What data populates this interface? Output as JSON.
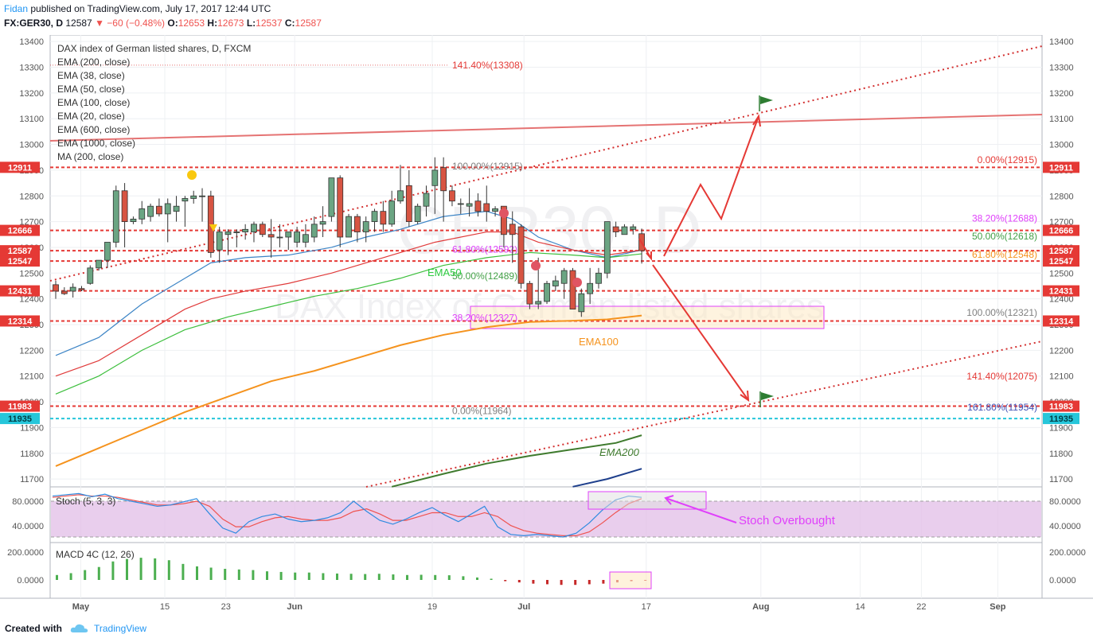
{
  "header": {
    "author": "Fidan",
    "published": "published on TradingView.com, July 17, 2017 12:44 UTC",
    "symbol": "FX:GER30, D",
    "last": "12587",
    "change": "▼ −60 (−0.48%)",
    "o_label": "O:",
    "o": "12653",
    "h_label": "H:",
    "h": "12673",
    "l_label": "L:",
    "l": "12537",
    "c_label": "C:",
    "c": "12587"
  },
  "footer": {
    "created": "Created with",
    "brand": "TradingView"
  },
  "colors": {
    "up": "#6ba583",
    "down": "#d75442",
    "ema20": "#3d85c6",
    "ema38": "#e03b3b",
    "ema50": "#3dbf3d",
    "ema100": "#f5931e",
    "ema200": "#3f7b2e",
    "ema600": "#1e3f8c",
    "ema1000": "#c62828",
    "fib": "#e53935",
    "stoch_k": "#2f8be0",
    "stoch_d": "#ef5350",
    "stoch_band": "#e1bee7",
    "macd_pos": "#4caf50",
    "macd_neg": "#c62828"
  },
  "watermark": {
    "symbol": "GER30, D",
    "name": "DAX Index of German listed shares"
  },
  "legend": {
    "title": "DAX index of German listed shares, D, FXCM",
    "items": [
      "EMA (200, close)",
      "EMA (38, close)",
      "EMA (50, close)",
      "EMA (100, close)",
      "EMA (20, close)",
      "EMA (600, close)",
      "EMA (1000, close)",
      "MA (200, close)"
    ]
  },
  "chart_data": {
    "type": "candlestick",
    "ylim": [
      11660,
      13430
    ],
    "y_ticks": [
      11700,
      11800,
      11900,
      12000,
      12100,
      12200,
      12300,
      12400,
      12500,
      12600,
      12700,
      12800,
      12900,
      13000,
      13100,
      13200,
      13300,
      13400
    ],
    "x_ticks": [
      {
        "label": "May",
        "day": 4
      },
      {
        "label": "15",
        "day": 15
      },
      {
        "label": "23",
        "day": 23
      },
      {
        "label": "Jun",
        "day": 32
      },
      {
        "label": "19",
        "day": 50
      },
      {
        "label": "Jul",
        "day": 62
      },
      {
        "label": "17",
        "day": 78
      },
      {
        "label": "Aug",
        "day": 93
      },
      {
        "label": "14",
        "day": 106
      },
      {
        "label": "22",
        "day": 114
      },
      {
        "label": "Sep",
        "day": 124
      }
    ],
    "candles": [
      [
        0,
        12455,
        12470,
        12400,
        12430
      ],
      [
        1,
        12430,
        12445,
        12415,
        12420
      ],
      [
        2,
        12430,
        12460,
        12405,
        12445
      ],
      [
        3,
        12440,
        12450,
        12430,
        12435
      ],
      [
        4,
        12460,
        12530,
        12455,
        12520
      ],
      [
        5,
        12520,
        12550,
        12510,
        12550
      ],
      [
        6,
        12550,
        12620,
        12520,
        12620
      ],
      [
        7,
        12620,
        12840,
        12600,
        12820
      ],
      [
        8,
        12820,
        12850,
        12600,
        12700
      ],
      [
        9,
        12700,
        12720,
        12690,
        12710
      ],
      [
        10,
        12710,
        12780,
        12690,
        12750
      ],
      [
        11,
        12720,
        12770,
        12700,
        12760
      ],
      [
        12,
        12760,
        12790,
        12720,
        12730
      ],
      [
        13,
        12730,
        12790,
        12620,
        12770
      ],
      [
        14,
        12740,
        12800,
        12700,
        12760
      ],
      [
        15,
        12780,
        12800,
        12680,
        12790
      ],
      [
        16,
        12790,
        12820,
        12770,
        12800
      ],
      [
        17,
        12800,
        12830,
        12700,
        12800
      ],
      [
        18,
        12800,
        12820,
        12560,
        12580
      ],
      [
        19,
        12590,
        12680,
        12540,
        12660
      ],
      [
        20,
        12650,
        12670,
        12570,
        12660
      ],
      [
        21,
        12660,
        12670,
        12600,
        12660
      ],
      [
        22,
        12660,
        12690,
        12630,
        12670
      ],
      [
        23,
        12660,
        12700,
        12620,
        12690
      ],
      [
        24,
        12690,
        12700,
        12640,
        12650
      ],
      [
        25,
        12650,
        12710,
        12560,
        12640
      ],
      [
        26,
        12640,
        12690,
        12600,
        12640
      ],
      [
        27,
        12640,
        12650,
        12590,
        12660
      ],
      [
        28,
        12620,
        12680,
        12600,
        12660
      ],
      [
        29,
        12620,
        12690,
        12600,
        12650
      ],
      [
        30,
        12640,
        12720,
        12620,
        12690
      ],
      [
        31,
        12690,
        12760,
        12640,
        12700
      ],
      [
        32,
        12720,
        12870,
        12700,
        12870
      ],
      [
        33,
        12870,
        12880,
        12600,
        12640
      ],
      [
        34,
        12640,
        12730,
        12640,
        12720
      ],
      [
        35,
        12720,
        12730,
        12620,
        12660
      ],
      [
        36,
        12660,
        12720,
        12620,
        12700
      ],
      [
        37,
        12700,
        12750,
        12660,
        12740
      ],
      [
        38,
        12740,
        12780,
        12660,
        12690
      ],
      [
        39,
        12690,
        12820,
        12680,
        12780
      ],
      [
        40,
        12780,
        12920,
        12770,
        12820
      ],
      [
        41,
        12840,
        12900,
        12680,
        12700
      ],
      [
        42,
        12700,
        12770,
        12690,
        12760
      ],
      [
        43,
        12760,
        12840,
        12720,
        12810
      ],
      [
        44,
        12840,
        12950,
        12730,
        12900
      ],
      [
        45,
        12910,
        12950,
        12700,
        12820
      ],
      [
        46,
        12820,
        12840,
        12760,
        12780
      ],
      [
        47,
        12770,
        12790,
        12730,
        12770
      ],
      [
        48,
        12760,
        12830,
        12720,
        12770
      ],
      [
        49,
        12780,
        12810,
        12720,
        12740
      ],
      [
        50,
        12770,
        12840,
        12700,
        12740
      ],
      [
        51,
        12740,
        12760,
        12720,
        12750
      ],
      [
        52,
        12760,
        12760,
        12600,
        12650
      ],
      [
        53,
        12690,
        12740,
        12540,
        12650
      ],
      [
        54,
        12680,
        12690,
        12440,
        12460
      ],
      [
        55,
        12460,
        12470,
        12360,
        12380
      ],
      [
        56,
        12380,
        12560,
        12360,
        12390
      ],
      [
        57,
        12390,
        12470,
        12380,
        12460
      ],
      [
        58,
        12450,
        12490,
        12430,
        12470
      ],
      [
        59,
        12460,
        12520,
        12400,
        12510
      ],
      [
        60,
        12510,
        12520,
        12360,
        12360
      ],
      [
        61,
        12350,
        12440,
        12330,
        12420
      ],
      [
        62,
        12420,
        12520,
        12380,
        12460
      ],
      [
        63,
        12460,
        12520,
        12440,
        12500
      ],
      [
        64,
        12500,
        12700,
        12480,
        12700
      ],
      [
        65,
        12680,
        12700,
        12640,
        12660
      ],
      [
        66,
        12650,
        12690,
        12660,
        12680
      ],
      [
        67,
        12670,
        12690,
        12650,
        12680
      ],
      [
        68,
        12653,
        12673,
        12537,
        12587
      ]
    ],
    "horizontal_levels": [
      {
        "value": 12911,
        "label": "12911"
      },
      {
        "value": 12666,
        "label": "12666"
      },
      {
        "value": 12587,
        "label": "12587"
      },
      {
        "value": 12547,
        "label": "12547"
      },
      {
        "value": 12431,
        "label": "12431"
      },
      {
        "value": 12314,
        "label": "12314"
      },
      {
        "value": 11983,
        "label": "11983"
      },
      {
        "value": 11935,
        "label": "11935"
      }
    ],
    "fib_labels": [
      {
        "text": "141.40%(13308)",
        "value": 13308,
        "color": "#e53935"
      },
      {
        "text": "100.00%(12915)",
        "value": 12915,
        "color": "#808080"
      },
      {
        "text": "61.80%(12592)",
        "value": 12592,
        "color": "#e040fb"
      },
      {
        "text": "50.00%(12489)",
        "value": 12489,
        "color": "#43a047"
      },
      {
        "text": "38.20%(12327)",
        "value": 12327,
        "color": "#e040fb"
      },
      {
        "text": "0.00%(11964)",
        "value": 11964,
        "color": "#808080"
      },
      {
        "text": "0.00%(12915)",
        "value": 12915,
        "color": "#e53935"
      },
      {
        "text": "38.20%(12688)",
        "value": 12688,
        "color": "#e040fb"
      },
      {
        "text": "50.00%(12618)",
        "value": 12618,
        "color": "#43a047"
      },
      {
        "text": "61.80%(12548)",
        "value": 12548,
        "color": "#f5931e"
      },
      {
        "text": "100.00%(12321)",
        "value": 12321,
        "color": "#808080"
      },
      {
        "text": "141.40%(12075)",
        "value": 12075,
        "color": "#e53935"
      },
      {
        "text": "161.80%(11954)",
        "value": 11954,
        "color": "#3f51b5"
      }
    ],
    "annotations": {
      "ema50": "EMA50",
      "ema100": "EMA100",
      "ema200": "EMA200",
      "stoch": "Stoch Overbought"
    },
    "stoch": {
      "title": "Stoch (5, 3, 3)",
      "y_ticks": [
        {
          "label": "80.0000",
          "value": 80
        },
        {
          "label": "40.0000",
          "value": 40
        }
      ],
      "k": [
        88,
        90,
        92,
        87,
        91,
        84,
        80,
        76,
        72,
        74,
        79,
        84,
        60,
        38,
        30,
        48,
        56,
        60,
        52,
        48,
        50,
        54,
        62,
        80,
        64,
        50,
        44,
        52,
        62,
        70,
        58,
        48,
        60,
        72,
        40,
        28,
        26,
        28,
        26,
        24,
        30,
        46,
        66,
        82,
        88,
        86
      ],
      "d": [
        86,
        88,
        90,
        88,
        88,
        86,
        82,
        78,
        74,
        74,
        76,
        80,
        72,
        52,
        40,
        40,
        48,
        54,
        56,
        52,
        50,
        50,
        54,
        64,
        68,
        60,
        50,
        50,
        56,
        62,
        62,
        56,
        56,
        62,
        56,
        42,
        34,
        30,
        28,
        26,
        26,
        32,
        46,
        62,
        76,
        84
      ]
    },
    "macd": {
      "title": "MACD 4C (12, 26)",
      "y_ticks": [
        {
          "label": "200.0000",
          "value": 200
        },
        {
          "label": "0.0000",
          "value": 0
        }
      ],
      "hist": [
        40,
        55,
        80,
        105,
        150,
        170,
        180,
        175,
        160,
        130,
        110,
        100,
        90,
        85,
        80,
        70,
        65,
        60,
        60,
        55,
        52,
        50,
        48,
        50,
        45,
        40,
        42,
        40,
        38,
        30,
        20,
        10,
        -10,
        -20,
        -30,
        -35,
        -40,
        -40,
        -35,
        -30,
        -20,
        -10,
        -6
      ]
    }
  }
}
